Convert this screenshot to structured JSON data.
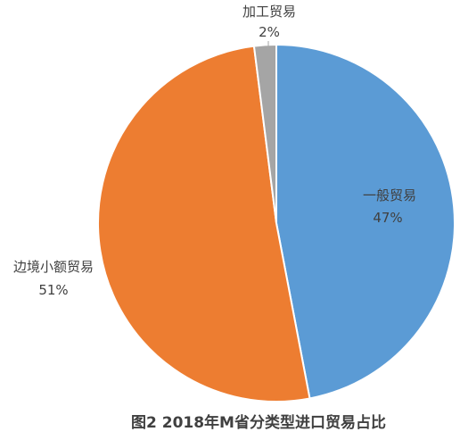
{
  "chart_data": {
    "type": "pie",
    "title": "图2  2018年M省分类型进口贸易占比",
    "slices": [
      {
        "name": "一般贸易",
        "value": 47,
        "value_label": "47%",
        "color": "#5b9bd5"
      },
      {
        "name": "边境小额贸易",
        "value": 51,
        "value_label": "51%",
        "color": "#ed7d31"
      },
      {
        "name": "加工贸易",
        "value": 2,
        "value_label": "2%",
        "color": "#a5a5a5"
      }
    ],
    "legend": "none",
    "start": "top, clockwise"
  }
}
